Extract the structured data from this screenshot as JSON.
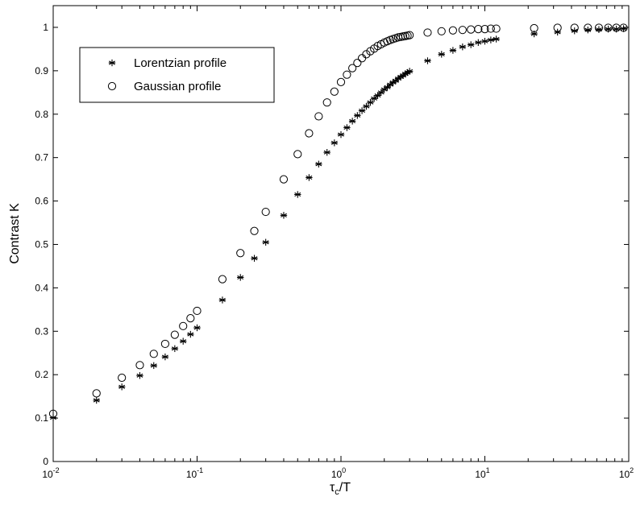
{
  "chart_data": {
    "type": "scatter",
    "xscale": "log",
    "xlim": [
      0.01,
      100
    ],
    "ylim": [
      0,
      1.05
    ],
    "xlabel": {
      "base": "τ",
      "sub": "c",
      "rest": "/T"
    },
    "ylabel": "Contrast K",
    "grid": false,
    "legend_position": "top-left",
    "x_ticks": [
      {
        "value": 0.01,
        "base": "10",
        "exp": "-2"
      },
      {
        "value": 0.1,
        "base": "10",
        "exp": "-1"
      },
      {
        "value": 1,
        "base": "10",
        "exp": "0"
      },
      {
        "value": 10,
        "base": "10",
        "exp": "1"
      },
      {
        "value": 100,
        "base": "10",
        "exp": "2"
      }
    ],
    "y_ticks": [
      {
        "value": 0,
        "label": "0"
      },
      {
        "value": 0.1,
        "label": "0.1"
      },
      {
        "value": 0.2,
        "label": "0.2"
      },
      {
        "value": 0.3,
        "label": "0.3"
      },
      {
        "value": 0.4,
        "label": "0.4"
      },
      {
        "value": 0.5,
        "label": "0.5"
      },
      {
        "value": 0.6,
        "label": "0.6"
      },
      {
        "value": 0.7,
        "label": "0.7"
      },
      {
        "value": 0.8,
        "label": "0.8"
      },
      {
        "value": 0.9,
        "label": "0.9"
      },
      {
        "value": 1,
        "label": "1"
      }
    ],
    "series": [
      {
        "name": "Lorentzian profile",
        "marker": "asterisk",
        "points": [
          [
            0.01,
            0.101
          ],
          [
            0.02,
            0.141
          ],
          [
            0.03,
            0.172
          ],
          [
            0.04,
            0.198
          ],
          [
            0.05,
            0.221
          ],
          [
            0.06,
            0.241
          ],
          [
            0.07,
            0.26
          ],
          [
            0.08,
            0.277
          ],
          [
            0.09,
            0.293
          ],
          [
            0.1,
            0.308
          ],
          [
            0.15,
            0.372
          ],
          [
            0.2,
            0.424
          ],
          [
            0.25,
            0.468
          ],
          [
            0.3,
            0.505
          ],
          [
            0.4,
            0.567
          ],
          [
            0.5,
            0.615
          ],
          [
            0.6,
            0.654
          ],
          [
            0.7,
            0.685
          ],
          [
            0.8,
            0.712
          ],
          [
            0.9,
            0.734
          ],
          [
            1.0,
            0.753
          ],
          [
            1.1,
            0.769
          ],
          [
            1.2,
            0.784
          ],
          [
            1.3,
            0.797
          ],
          [
            1.4,
            0.808
          ],
          [
            1.5,
            0.818
          ],
          [
            1.6,
            0.827
          ],
          [
            1.7,
            0.836
          ],
          [
            1.8,
            0.843
          ],
          [
            1.9,
            0.85
          ],
          [
            2.0,
            0.857
          ],
          [
            2.1,
            0.862
          ],
          [
            2.2,
            0.868
          ],
          [
            2.3,
            0.873
          ],
          [
            2.4,
            0.877
          ],
          [
            2.5,
            0.882
          ],
          [
            2.6,
            0.886
          ],
          [
            2.7,
            0.889
          ],
          [
            2.8,
            0.893
          ],
          [
            2.9,
            0.896
          ],
          [
            3.0,
            0.899
          ],
          [
            4,
            0.923
          ],
          [
            5,
            0.938
          ],
          [
            6,
            0.947
          ],
          [
            7,
            0.955
          ],
          [
            8,
            0.96
          ],
          [
            9,
            0.965
          ],
          [
            10,
            0.968
          ],
          [
            11,
            0.971
          ],
          [
            12,
            0.973
          ],
          [
            22,
            0.985
          ],
          [
            32,
            0.989
          ],
          [
            42,
            0.992
          ],
          [
            52,
            0.994
          ],
          [
            62,
            0.995
          ],
          [
            72,
            0.996
          ],
          [
            82,
            0.996
          ],
          [
            92,
            0.997
          ]
        ]
      },
      {
        "name": "Gaussian profile",
        "marker": "circle",
        "points": [
          [
            0.01,
            0.11
          ],
          [
            0.02,
            0.157
          ],
          [
            0.03,
            0.193
          ],
          [
            0.04,
            0.222
          ],
          [
            0.05,
            0.248
          ],
          [
            0.06,
            0.271
          ],
          [
            0.07,
            0.292
          ],
          [
            0.08,
            0.312
          ],
          [
            0.09,
            0.33
          ],
          [
            0.1,
            0.347
          ],
          [
            0.15,
            0.42
          ],
          [
            0.2,
            0.48
          ],
          [
            0.25,
            0.531
          ],
          [
            0.3,
            0.575
          ],
          [
            0.4,
            0.65
          ],
          [
            0.5,
            0.708
          ],
          [
            0.6,
            0.756
          ],
          [
            0.7,
            0.795
          ],
          [
            0.8,
            0.827
          ],
          [
            0.9,
            0.852
          ],
          [
            1.0,
            0.874
          ],
          [
            1.1,
            0.891
          ],
          [
            1.2,
            0.906
          ],
          [
            1.3,
            0.918
          ],
          [
            1.4,
            0.929
          ],
          [
            1.5,
            0.938
          ],
          [
            1.6,
            0.945
          ],
          [
            1.7,
            0.951
          ],
          [
            1.8,
            0.957
          ],
          [
            1.9,
            0.961
          ],
          [
            2.0,
            0.965
          ],
          [
            2.1,
            0.968
          ],
          [
            2.2,
            0.971
          ],
          [
            2.3,
            0.973
          ],
          [
            2.4,
            0.975
          ],
          [
            2.5,
            0.977
          ],
          [
            2.6,
            0.978
          ],
          [
            2.7,
            0.979
          ],
          [
            2.8,
            0.98
          ],
          [
            2.9,
            0.981
          ],
          [
            3.0,
            0.982
          ],
          [
            4,
            0.988
          ],
          [
            5,
            0.991
          ],
          [
            6,
            0.993
          ],
          [
            7,
            0.994
          ],
          [
            8,
            0.995
          ],
          [
            9,
            0.996
          ],
          [
            10,
            0.996
          ],
          [
            11,
            0.997
          ],
          [
            12,
            0.997
          ],
          [
            22,
            0.998
          ],
          [
            32,
            0.999
          ],
          [
            42,
            0.999
          ],
          [
            52,
            0.999
          ],
          [
            62,
            0.999
          ],
          [
            72,
            0.999
          ],
          [
            82,
            0.999
          ],
          [
            92,
            0.999
          ]
        ]
      }
    ]
  }
}
